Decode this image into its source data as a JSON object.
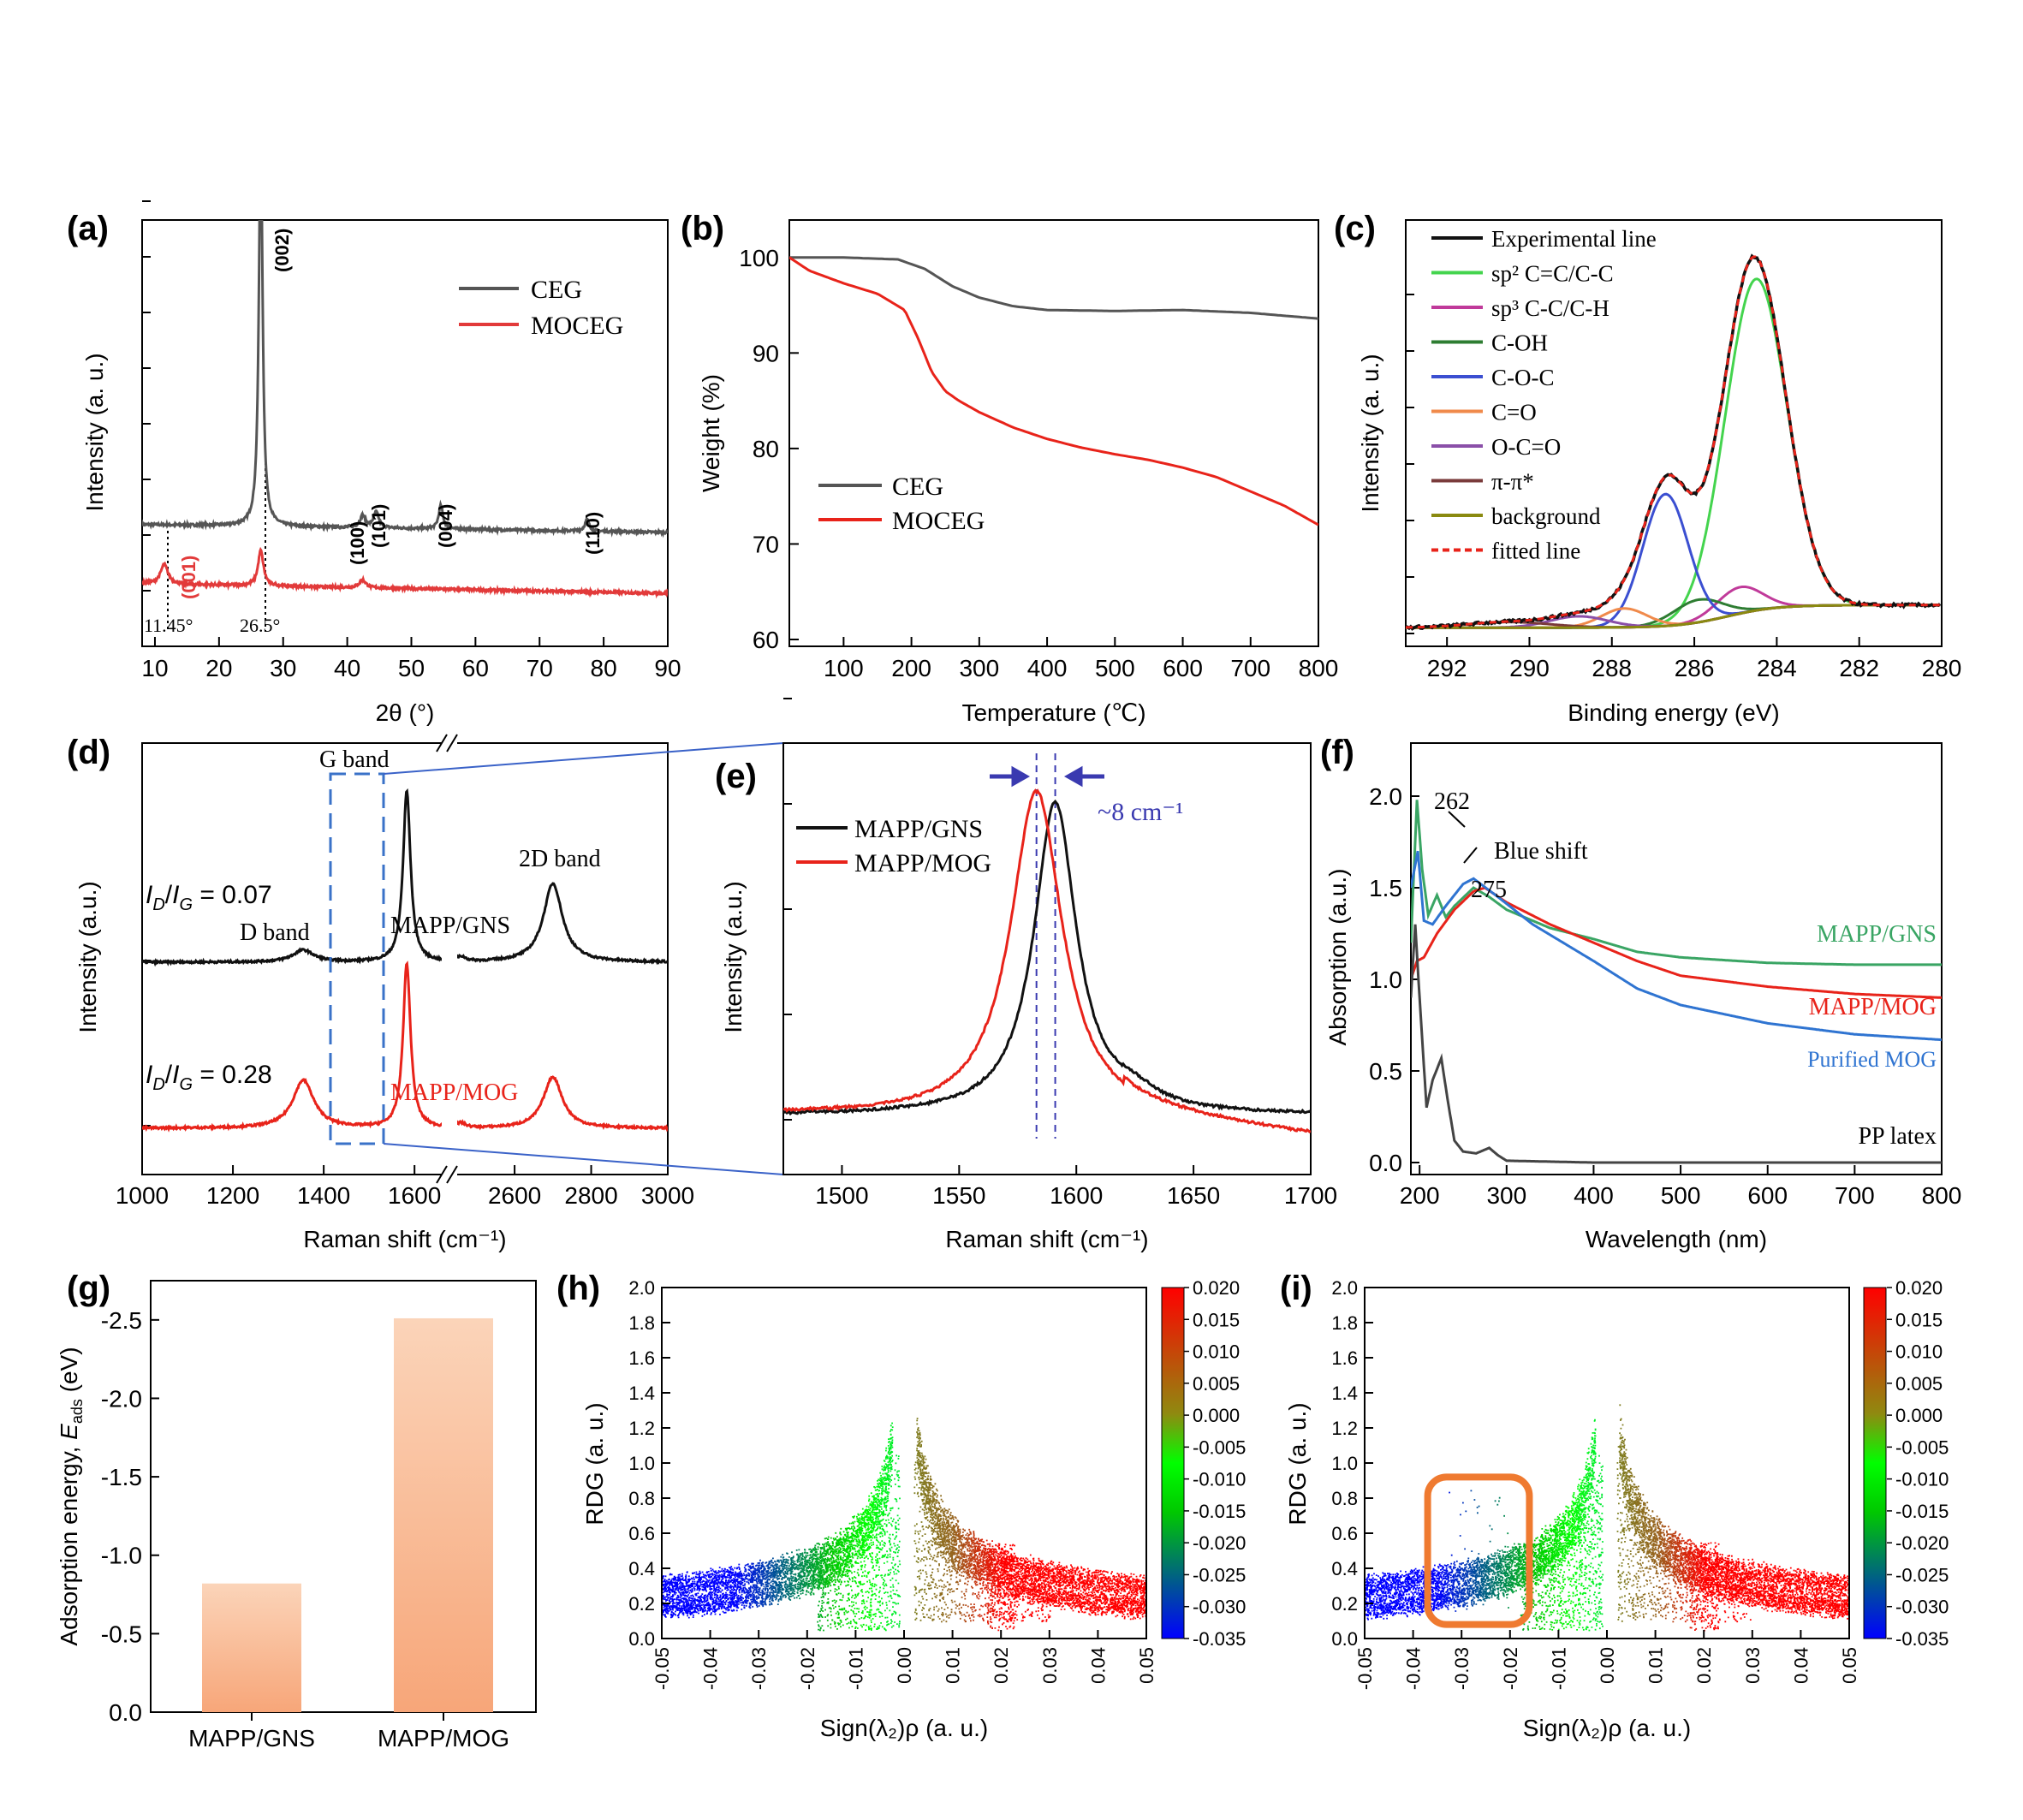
{
  "chart_data": [
    {
      "panel": "(a)",
      "type": "line",
      "xlabel": "2θ (°)",
      "ylabel": "Intensity (a. u.)",
      "xlim": [
        8,
        90
      ],
      "x_ticks": [
        10,
        20,
        30,
        40,
        50,
        60,
        70,
        80,
        90
      ],
      "legend_placement": "top-right",
      "series": [
        {
          "name": "CEG",
          "color": "#555555",
          "peaks": [
            {
              "x": 26.5,
              "height": 1.0,
              "width": 0.35
            },
            {
              "x": 42.4,
              "height": 0.03,
              "width": 0.5
            },
            {
              "x": 44.5,
              "height": 0.04,
              "width": 0.5
            },
            {
              "x": 54.6,
              "height": 0.06,
              "width": 0.4
            },
            {
              "x": 77.4,
              "height": 0.03,
              "width": 0.4
            }
          ],
          "baseline": 0.27
        },
        {
          "name": "MOCEG",
          "color": "#e23a3a",
          "peaks": [
            {
              "x": 11.45,
              "height": 0.05,
              "width": 0.7
            },
            {
              "x": 26.5,
              "height": 0.09,
              "width": 0.5
            },
            {
              "x": 42.4,
              "height": 0.02,
              "width": 0.6
            }
          ],
          "baseline": 0.12
        }
      ],
      "annotations": [
        "(002)",
        "(100)",
        "(101)",
        "(004)",
        "(110)",
        "(001)",
        "11.45°",
        "26.5°"
      ]
    },
    {
      "panel": "(b)",
      "type": "line",
      "xlabel": "Temperature (℃)",
      "ylabel": "Weight (%)",
      "xlim": [
        20,
        800
      ],
      "ylim": [
        60,
        105
      ],
      "x_ticks": [
        100,
        200,
        300,
        400,
        500,
        600,
        700,
        800
      ],
      "y_ticks": [
        60,
        70,
        80,
        90,
        100
      ],
      "legend_placement": "bottom-left",
      "series": [
        {
          "name": "CEG",
          "color": "#555555",
          "x": [
            20,
            100,
            180,
            220,
            260,
            300,
            350,
            400,
            500,
            600,
            700,
            800
          ],
          "y": [
            100,
            100,
            99.8,
            98.8,
            97,
            95.8,
            94.9,
            94.5,
            94.4,
            94.5,
            94.2,
            93.6
          ]
        },
        {
          "name": "MOCEG",
          "color": "#e8231a",
          "x": [
            20,
            50,
            100,
            150,
            190,
            210,
            230,
            250,
            270,
            300,
            350,
            400,
            450,
            500,
            550,
            600,
            650,
            700,
            750,
            800
          ],
          "y": [
            100,
            98.6,
            97.3,
            96.2,
            94.5,
            91.5,
            88,
            86,
            85,
            83.8,
            82.2,
            81,
            80.1,
            79.4,
            78.8,
            78,
            77,
            75.5,
            74,
            72
          ]
        }
      ]
    },
    {
      "panel": "(c)",
      "type": "line",
      "xlabel": "Binding energy (eV)",
      "ylabel": "Intensity (a. u.)",
      "xlim": [
        293,
        280
      ],
      "x_ticks": [
        292,
        290,
        288,
        286,
        284,
        282,
        280
      ],
      "legend_placement": "top-left",
      "series": [
        {
          "name": "Experimental line",
          "color": "#111111"
        },
        {
          "name": "sp² C=C/C-C",
          "color": "#44d44e",
          "center": 284.5,
          "height": 0.88
        },
        {
          "name": "sp³ C-C/C-H",
          "color": "#c03a9a",
          "center": 284.9,
          "height": 0.07
        },
        {
          "name": "C-OH",
          "color": "#2e7d32",
          "center": 285.9,
          "height": 0.06
        },
        {
          "name": "C-O-C",
          "color": "#3b4fd1",
          "center": 286.7,
          "height": 0.35
        },
        {
          "name": "C=O",
          "color": "#f08a4b",
          "center": 287.7,
          "height": 0.05
        },
        {
          "name": "O-C=O",
          "color": "#8a4fa8",
          "center": 288.8,
          "height": 0.03
        },
        {
          "name": "π-π*",
          "color": "#7a3b3b",
          "center": 290.5,
          "height": 0.015
        },
        {
          "name": "background",
          "color": "#8a8a10"
        },
        {
          "name": "fitted line",
          "color": "#e8231a"
        }
      ]
    },
    {
      "panel": "(d)",
      "type": "line",
      "xlabel": "Raman shift (cm⁻¹)",
      "ylabel": "Intensity (a.u.)",
      "x_ticks": [
        1000,
        1200,
        1400,
        1600,
        2600,
        2800,
        3000
      ],
      "series": [
        {
          "name": "MAPP/GNS",
          "color": "#111111",
          "ratio": "I_D/I_G = 0.07"
        },
        {
          "name": "MAPP/MOG",
          "color": "#e8231a",
          "ratio": "I_D/I_G = 0.28"
        }
      ],
      "annotations": [
        "D band",
        "G band",
        "2D band"
      ]
    },
    {
      "panel": "(e)",
      "type": "line",
      "xlabel": "Raman shift (cm⁻¹)",
      "ylabel": "Intensity (a.u.)",
      "xlim": [
        1475,
        1700
      ],
      "x_ticks": [
        1500,
        1550,
        1600,
        1650,
        1700
      ],
      "legend_placement": "top-left",
      "series": [
        {
          "name": "MAPP/GNS",
          "color": "#111111",
          "peak": 1591
        },
        {
          "name": "MAPP/MOG",
          "color": "#e8231a",
          "peak": 1583
        }
      ],
      "annotations": [
        "~8 cm⁻¹"
      ]
    },
    {
      "panel": "(f)",
      "type": "line",
      "xlabel": "Wavelength (nm)",
      "ylabel": "Absorption (a.u.)",
      "xlim": [
        190,
        800
      ],
      "ylim": [
        -0.1,
        2.2
      ],
      "x_ticks": [
        200,
        300,
        400,
        500,
        600,
        700,
        800
      ],
      "y_ticks": [
        0.0,
        0.5,
        1.0,
        1.5,
        2.0
      ],
      "series": [
        {
          "name": "MAPP/GNS",
          "color": "#3aa564",
          "x": [
            190,
            197,
            203,
            210,
            220,
            230,
            240,
            262,
            280,
            300,
            350,
            400,
            450,
            500,
            600,
            700,
            800
          ],
          "y": [
            1.2,
            1.98,
            1.6,
            1.35,
            1.46,
            1.34,
            1.4,
            1.5,
            1.45,
            1.38,
            1.28,
            1.22,
            1.15,
            1.12,
            1.09,
            1.08,
            1.08
          ]
        },
        {
          "name": "MAPP/MOG",
          "color": "#e8231a",
          "x": [
            190,
            197,
            205,
            220,
            240,
            262,
            275,
            300,
            350,
            400,
            450,
            500,
            600,
            700,
            800
          ],
          "y": [
            1.0,
            1.1,
            1.12,
            1.25,
            1.38,
            1.48,
            1.5,
            1.42,
            1.3,
            1.2,
            1.1,
            1.02,
            0.96,
            0.92,
            0.9
          ]
        },
        {
          "name": "Purified MOG",
          "color": "#2f74d1",
          "x": [
            190,
            198,
            205,
            215,
            230,
            250,
            262,
            290,
            330,
            400,
            450,
            500,
            600,
            700,
            800
          ],
          "y": [
            1.5,
            1.7,
            1.32,
            1.3,
            1.4,
            1.52,
            1.55,
            1.45,
            1.3,
            1.1,
            0.95,
            0.86,
            0.76,
            0.7,
            0.67
          ]
        },
        {
          "name": "PP latex",
          "color": "#444444",
          "x": [
            190,
            195,
            200,
            208,
            215,
            225,
            232,
            240,
            250,
            265,
            280,
            290,
            300,
            400,
            800
          ],
          "y": [
            0.9,
            1.3,
            0.9,
            0.3,
            0.45,
            0.57,
            0.35,
            0.12,
            0.06,
            0.05,
            0.08,
            0.04,
            0.01,
            0.0,
            0.0
          ]
        }
      ],
      "annotations": [
        "262",
        "275",
        "Blue shift"
      ]
    },
    {
      "panel": "(g)",
      "type": "bar",
      "ylabel": "Adsorption energy, E_ads (eV)",
      "categories": [
        "MAPP/GNS",
        "MAPP/MOG"
      ],
      "values": [
        -0.82,
        -2.51
      ],
      "ylim": [
        0,
        -2.75
      ],
      "y_ticks": [
        0.0,
        -0.5,
        -1.0,
        -1.5,
        -2.0,
        -2.5
      ]
    },
    {
      "panel": "(h)",
      "type": "scatter",
      "xlabel": "Sign(λ₂)ρ (a. u.)",
      "ylabel": "RDG (a. u.)",
      "xlim": [
        -0.05,
        0.05
      ],
      "ylim": [
        0,
        2.0
      ],
      "colorbar_range": [
        -0.035,
        0.02
      ],
      "colorbar_ticks": [
        0.02,
        0.015,
        0.01,
        0.005,
        0.0,
        -0.005,
        -0.01,
        -0.015,
        -0.02,
        -0.025,
        -0.03,
        -0.035
      ]
    },
    {
      "panel": "(i)",
      "type": "scatter",
      "xlabel": "Sign(λ₂)ρ (a. u.)",
      "ylabel": "RDG (a. u.)",
      "xlim": [
        -0.05,
        0.05
      ],
      "ylim": [
        0,
        2.0
      ],
      "colorbar_range": [
        -0.035,
        0.02
      ],
      "colorbar_ticks": [
        0.02,
        0.015,
        0.01,
        0.005,
        0.0,
        -0.005,
        -0.01,
        -0.015,
        -0.02,
        -0.025,
        -0.03,
        -0.035
      ],
      "highlight_region": {
        "x": [
          -0.037,
          -0.016
        ],
        "y": [
          0.08,
          0.92
        ]
      }
    }
  ],
  "text": {
    "a": {
      "label": "(a)",
      "ylabel": "Intensity (a. u.)",
      "xlabel": "2θ (°)",
      "legend": [
        "CEG",
        "MOCEG"
      ],
      "ann": [
        "(002)",
        "(100)",
        "(101)",
        "(004)",
        "(110)",
        "(001)",
        "11.45°",
        "26.5°"
      ],
      "ticks": [
        "10",
        "20",
        "30",
        "40",
        "50",
        "60",
        "70",
        "80",
        "90"
      ]
    },
    "b": {
      "label": "(b)",
      "ylabel": "Weight (%)",
      "xlabel": "Temperature (℃)",
      "legend": [
        "CEG",
        "MOCEG"
      ],
      "xticks": [
        "100",
        "200",
        "300",
        "400",
        "500",
        "600",
        "700",
        "800"
      ],
      "yticks": [
        "60",
        "70",
        "80",
        "90",
        "100"
      ]
    },
    "c": {
      "label": "(c)",
      "ylabel": "Intensity (a. u.)",
      "xlabel": "Binding energy (eV)",
      "legend": [
        "Experimental line",
        "sp² C=C/C-C",
        "sp³ C-C/C-H",
        "C-OH",
        "C-O-C",
        "C=O",
        "O-C=O",
        "π-π*",
        "background",
        "fitted line"
      ],
      "ticks": [
        "292",
        "290",
        "288",
        "286",
        "284",
        "282",
        "280"
      ]
    },
    "d": {
      "label": "(d)",
      "ylabel": "Intensity (a.u.)",
      "xlabel": "Raman shift (cm⁻¹)",
      "ann": [
        "G band",
        "2D band",
        "D band",
        "MAPP/GNS",
        "MAPP/MOG",
        "I_D/I_G = 0.07",
        "I_D/I_G = 0.28"
      ],
      "ticks": [
        "1000",
        "1200",
        "1400",
        "1600",
        "2600",
        "2800",
        "3000"
      ]
    },
    "e": {
      "label": "(e)",
      "ylabel": "Intensity (a.u.)",
      "xlabel": "Raman shift (cm⁻¹)",
      "legend": [
        "MAPP/GNS",
        "MAPP/MOG"
      ],
      "ann": "~8 cm⁻¹",
      "ticks": [
        "1500",
        "1550",
        "1600",
        "1650",
        "1700"
      ]
    },
    "f": {
      "label": "(f)",
      "ylabel": "Absorption (a.u.)",
      "xlabel": "Wavelength (nm)",
      "ann": [
        "262",
        "275",
        "Blue shift",
        "MAPP/GNS",
        "MAPP/MOG",
        "Purified MOG",
        "PP latex"
      ],
      "xticks": [
        "200",
        "300",
        "400",
        "500",
        "600",
        "700",
        "800"
      ],
      "yticks": [
        "0.0",
        "0.5",
        "1.0",
        "1.5",
        "2.0"
      ]
    },
    "g": {
      "label": "(g)",
      "ylabel": "Adsorption energy, E_ads (eV)",
      "cats": [
        "MAPP/GNS",
        "MAPP/MOG"
      ],
      "yticks": [
        "0.0",
        "-0.5",
        "-1.0",
        "-1.5",
        "-2.0",
        "-2.5"
      ]
    },
    "h": {
      "label": "(h)",
      "ylabel": "RDG (a. u.)",
      "xlabel": "Sign(λ₂)ρ (a. u.)"
    },
    "i": {
      "label": "(i)",
      "ylabel": "RDG (a. u.)",
      "xlabel": "Sign(λ₂)ρ (a. u.)"
    },
    "rdg_xticks": [
      "-0.05",
      "-0.04",
      "-0.03",
      "-0.02",
      "-0.01",
      "0.00",
      "0.01",
      "0.02",
      "0.03",
      "0.04",
      "0.05"
    ],
    "rdg_yticks": [
      "0.0",
      "0.2",
      "0.4",
      "0.6",
      "0.8",
      "1.0",
      "1.2",
      "1.4",
      "1.6",
      "1.8",
      "2.0"
    ],
    "cbar_ticks": [
      "0.020",
      "0.015",
      "0.010",
      "0.005",
      "0.000",
      "-0.005",
      "-0.010",
      "-0.015",
      "-0.020",
      "-0.025",
      "-0.030",
      "-0.035"
    ]
  }
}
